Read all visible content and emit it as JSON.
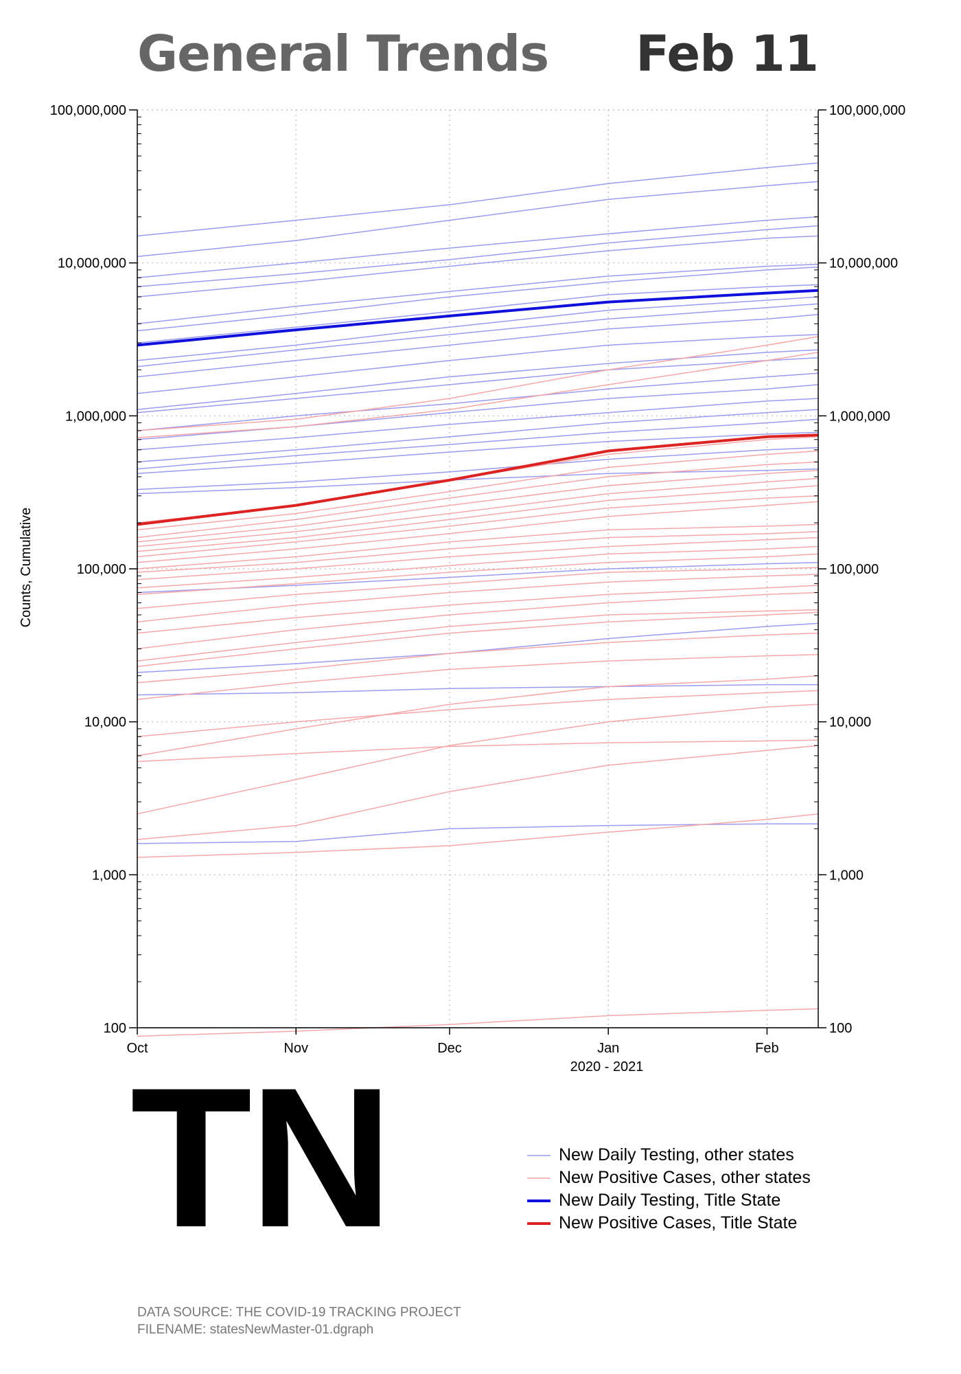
{
  "header": {
    "title": "General Trends",
    "date": "Feb 11"
  },
  "state_code": "TN",
  "legend": [
    {
      "label": "New Daily Testing, other states",
      "color": "#9a9af0",
      "width": 1.5
    },
    {
      "label": "New Positive Cases, other states",
      "color": "#f6a6a6",
      "width": 1.5
    },
    {
      "label": "New Daily Testing, Title State",
      "color": "#1010dd",
      "width": 4
    },
    {
      "label": "New Positive Cases, Title State",
      "color": "#dd2222",
      "width": 4
    }
  ],
  "footer": {
    "line1": "DATA SOURCE: THE COVID-19 TRACKING PROJECT",
    "line2": "FILENAME: statesNewMaster-01.dgraph"
  },
  "chart_data": {
    "type": "line",
    "ylabel": "Counts, Cumulative",
    "xlabel": "2020 - 2021",
    "yscale": "log",
    "ylim": [
      100,
      100000000
    ],
    "xlim": [
      "2020-10-01",
      "2021-02-11"
    ],
    "x_ticks": [
      {
        "date": "2020-10-01",
        "label": "Oct"
      },
      {
        "date": "2020-11-01",
        "label": "Nov"
      },
      {
        "date": "2020-12-01",
        "label": "Dec"
      },
      {
        "date": "2021-01-01",
        "label": "Jan"
      },
      {
        "date": "2021-02-01",
        "label": "Feb"
      }
    ],
    "y_ticks": [
      {
        "value": 100,
        "label": "100"
      },
      {
        "value": 1000,
        "label": "1,000"
      },
      {
        "value": 10000,
        "label": "10,000"
      },
      {
        "value": 100000,
        "label": "100,000"
      },
      {
        "value": 1000000,
        "label": "1,000,000"
      },
      {
        "value": 10000000,
        "label": "10,000,000"
      },
      {
        "value": 100000000,
        "label": "100,000,000"
      }
    ],
    "grid": true,
    "x_dates": [
      "2020-10-01",
      "2020-11-01",
      "2020-12-01",
      "2021-01-01",
      "2021-02-01",
      "2021-02-11"
    ],
    "title_state": {
      "testing": [
        2900000,
        3650000,
        4500000,
        5550000,
        6350000,
        6600000
      ],
      "cases": [
        195000,
        260000,
        380000,
        590000,
        730000,
        750000
      ]
    },
    "other_states_testing": [
      [
        15000000,
        19000000,
        24000000,
        33000000,
        42000000,
        45000000
      ],
      [
        11000000,
        14000000,
        19000000,
        26000000,
        32000000,
        34000000
      ],
      [
        8000000,
        10000000,
        12500000,
        15500000,
        19000000,
        20000000
      ],
      [
        7000000,
        8500000,
        10500000,
        13500000,
        16500000,
        17500000
      ],
      [
        6000000,
        7500000,
        9500000,
        12000000,
        14500000,
        15000000
      ],
      [
        4000000,
        5200000,
        6500000,
        8200000,
        9500000,
        9800000
      ],
      [
        3600000,
        4600000,
        6000000,
        7500000,
        9000000,
        9400000
      ],
      [
        3000000,
        3800000,
        4800000,
        6200000,
        7000000,
        7200000
      ],
      [
        2300000,
        2900000,
        3800000,
        4900000,
        5700000,
        6000000
      ],
      [
        2100000,
        2700000,
        3400000,
        4300000,
        5100000,
        5400000
      ],
      [
        1800000,
        2300000,
        2900000,
        3700000,
        4300000,
        4600000
      ],
      [
        1400000,
        1800000,
        2300000,
        2900000,
        3300000,
        3400000
      ],
      [
        1100000,
        1400000,
        1800000,
        2200000,
        2600000,
        2700000
      ],
      [
        1050000,
        1300000,
        1600000,
        2000000,
        2300000,
        2400000
      ],
      [
        800000,
        1000000,
        1200000,
        1500000,
        1800000,
        1900000
      ],
      [
        700000,
        850000,
        1050000,
        1300000,
        1500000,
        1600000
      ],
      [
        600000,
        720000,
        880000,
        1050000,
        1250000,
        1300000
      ],
      [
        500000,
        600000,
        730000,
        900000,
        1050000,
        1100000
      ],
      [
        450000,
        550000,
        650000,
        780000,
        900000,
        950000
      ],
      [
        420000,
        490000,
        580000,
        680000,
        760000,
        780000
      ],
      [
        330000,
        370000,
        430000,
        520000,
        600000,
        620000
      ],
      [
        310000,
        340000,
        380000,
        420000,
        440000,
        450000
      ],
      [
        70000,
        78000,
        88000,
        100000,
        108000,
        110000
      ],
      [
        21000,
        24000,
        28000,
        35000,
        42000,
        44000
      ],
      [
        15000,
        15500,
        16500,
        17000,
        17500,
        17500
      ],
      [
        1600,
        1650,
        2000,
        2100,
        2150,
        2150
      ]
    ],
    "other_states_cases": [
      [
        800000,
        950000,
        1300000,
        2000000,
        2900000,
        3300000
      ],
      [
        720000,
        850000,
        1100000,
        1600000,
        2300000,
        2600000
      ],
      [
        200000,
        260000,
        380000,
        560000,
        700000,
        730000
      ],
      [
        180000,
        230000,
        320000,
        460000,
        560000,
        590000
      ],
      [
        160000,
        210000,
        290000,
        400000,
        480000,
        500000
      ],
      [
        150000,
        190000,
        260000,
        350000,
        420000,
        440000
      ],
      [
        140000,
        175000,
        230000,
        310000,
        370000,
        390000
      ],
      [
        130000,
        160000,
        210000,
        280000,
        330000,
        350000
      ],
      [
        120000,
        150000,
        190000,
        250000,
        290000,
        300000
      ],
      [
        110000,
        135000,
        170000,
        220000,
        260000,
        275000
      ],
      [
        100000,
        120000,
        150000,
        180000,
        190000,
        195000
      ],
      [
        95000,
        110000,
        135000,
        160000,
        170000,
        175000
      ],
      [
        85000,
        100000,
        120000,
        140000,
        155000,
        160000
      ],
      [
        75000,
        88000,
        105000,
        125000,
        135000,
        140000
      ],
      [
        68000,
        80000,
        95000,
        110000,
        120000,
        125000
      ],
      [
        55000,
        68000,
        80000,
        95000,
        100000,
        102000
      ],
      [
        45000,
        58000,
        70000,
        82000,
        90000,
        92000
      ],
      [
        38000,
        48000,
        58000,
        68000,
        75000,
        78000
      ],
      [
        30000,
        40000,
        50000,
        60000,
        68000,
        70000
      ],
      [
        25000,
        33000,
        42000,
        50000,
        53000,
        54000
      ],
      [
        23000,
        30000,
        38000,
        45000,
        50000,
        52000
      ],
      [
        18000,
        22000,
        28000,
        33000,
        37000,
        38000
      ],
      [
        14000,
        18000,
        22000,
        25000,
        27000,
        27500
      ],
      [
        8000,
        10000,
        12000,
        14000,
        15500,
        16000
      ],
      [
        6000,
        9000,
        13000,
        17000,
        19000,
        20000
      ],
      [
        5500,
        6200,
        6900,
        7300,
        7500,
        7600
      ],
      [
        2500,
        4200,
        7000,
        10000,
        12500,
        13000
      ],
      [
        1700,
        2100,
        3500,
        5200,
        6500,
        7000
      ],
      [
        1300,
        1400,
        1550,
        1900,
        2300,
        2500
      ],
      [
        88,
        95,
        105,
        120,
        130,
        133
      ]
    ]
  }
}
